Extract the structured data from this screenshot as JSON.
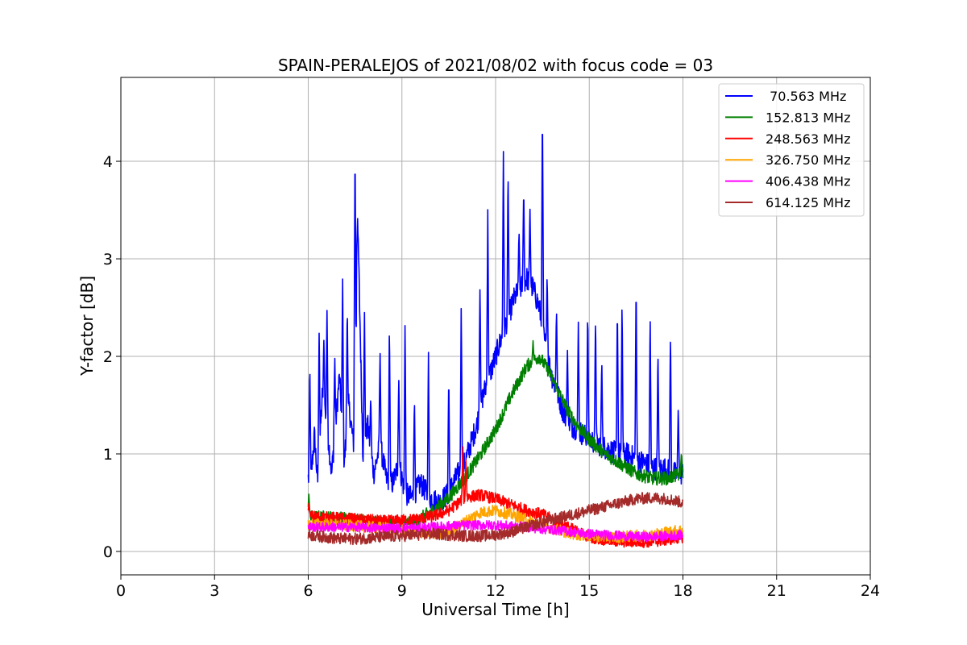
{
  "chart_data": {
    "type": "line",
    "title": "SPAIN-PERALEJOS of 2021/08/02 with focus code = 03",
    "xlabel": "Universal Time [h]",
    "ylabel": "Y-factor [dB]",
    "xlim": [
      0,
      24
    ],
    "ylim": [
      -0.24,
      4.86
    ],
    "xticks": [
      0,
      3,
      6,
      9,
      12,
      15,
      18,
      21,
      24
    ],
    "yticks": [
      0,
      1,
      2,
      3,
      4
    ],
    "grid": true,
    "legend_position": "upper right",
    "legend_labels": [
      " 70.563 MHz",
      "152.813 MHz",
      "248.563 MHz",
      "326.750 MHz",
      "406.438 MHz",
      "614.125 MHz"
    ],
    "series": [
      {
        "name": " 70.563 MHz",
        "color": "#0000ff",
        "noise": 0.12,
        "x": [
          6.0,
          6.1,
          6.2,
          6.3,
          6.45,
          6.6,
          6.75,
          6.9,
          7.0,
          7.15,
          7.3,
          7.45,
          7.6,
          7.75,
          7.9,
          8.1,
          8.3,
          8.5,
          8.7,
          8.9,
          9.1,
          9.3,
          9.6,
          9.9,
          10.2,
          10.5,
          10.8,
          11.0,
          11.2,
          11.4,
          11.6,
          11.8,
          12.0,
          12.2,
          12.4,
          12.6,
          12.8,
          13.0,
          13.2,
          13.4,
          13.6,
          13.8,
          14.0,
          14.2,
          14.4,
          14.6,
          14.8,
          15.0,
          15.3,
          15.6,
          15.9,
          16.2,
          16.5,
          16.8,
          17.1,
          17.4,
          17.7,
          18.0
        ],
        "y": [
          0.75,
          0.8,
          1.2,
          0.7,
          1.6,
          1.3,
          0.8,
          1.4,
          1.8,
          0.9,
          1.5,
          1.1,
          3.2,
          1.0,
          1.3,
          0.8,
          1.1,
          0.75,
          0.7,
          0.9,
          0.6,
          0.55,
          0.7,
          0.55,
          0.5,
          0.6,
          0.8,
          0.9,
          1.1,
          1.3,
          1.6,
          1.8,
          2.0,
          2.2,
          2.4,
          2.6,
          2.7,
          2.8,
          2.7,
          2.5,
          2.1,
          1.8,
          1.6,
          1.4,
          1.3,
          1.25,
          1.2,
          1.15,
          1.1,
          1.05,
          1.0,
          1.0,
          0.95,
          0.9,
          0.85,
          0.85,
          0.8,
          0.8
        ],
        "spikes": [
          [
            6.05,
            1.97
          ],
          [
            6.35,
            2.27
          ],
          [
            6.5,
            2.2
          ],
          [
            6.6,
            2.47
          ],
          [
            6.85,
            2.0
          ],
          [
            7.1,
            2.88
          ],
          [
            7.25,
            2.55
          ],
          [
            7.5,
            4.25
          ],
          [
            7.58,
            3.44
          ],
          [
            7.8,
            2.45
          ],
          [
            8.0,
            1.6
          ],
          [
            8.3,
            2.08
          ],
          [
            8.6,
            2.38
          ],
          [
            8.9,
            1.8
          ],
          [
            9.1,
            2.41
          ],
          [
            9.4,
            1.6
          ],
          [
            9.85,
            2.08
          ],
          [
            10.5,
            1.85
          ],
          [
            10.9,
            2.58
          ],
          [
            11.5,
            2.75
          ],
          [
            11.75,
            3.55
          ],
          [
            12.25,
            4.15
          ],
          [
            12.4,
            3.95
          ],
          [
            12.75,
            3.3
          ],
          [
            12.9,
            3.76
          ],
          [
            13.1,
            3.55
          ],
          [
            13.5,
            4.64
          ],
          [
            13.65,
            2.85
          ],
          [
            13.95,
            2.5
          ],
          [
            14.3,
            2.1
          ],
          [
            14.65,
            2.38
          ],
          [
            14.95,
            2.52
          ],
          [
            15.2,
            2.45
          ],
          [
            15.4,
            2.0
          ],
          [
            15.9,
            2.58
          ],
          [
            16.05,
            2.6
          ],
          [
            16.5,
            2.85
          ],
          [
            16.95,
            2.48
          ],
          [
            17.2,
            2.1
          ],
          [
            17.6,
            2.3
          ],
          [
            17.85,
            1.5
          ]
        ]
      },
      {
        "name": "152.813 MHz",
        "color": "#008000",
        "noise": 0.07,
        "x": [
          6.0,
          6.5,
          7.0,
          7.5,
          8.0,
          8.5,
          9.0,
          9.5,
          10.0,
          10.5,
          11.0,
          11.5,
          12.0,
          12.5,
          13.0,
          13.4,
          13.7,
          14.0,
          14.3,
          14.6,
          15.0,
          15.5,
          16.0,
          16.5,
          17.0,
          17.5,
          18.0
        ],
        "y": [
          0.35,
          0.35,
          0.34,
          0.33,
          0.3,
          0.28,
          0.28,
          0.32,
          0.42,
          0.55,
          0.75,
          0.98,
          1.25,
          1.6,
          1.9,
          2.0,
          1.85,
          1.65,
          1.45,
          1.3,
          1.15,
          1.0,
          0.9,
          0.8,
          0.75,
          0.75,
          0.8
        ],
        "spikes": [
          [
            6.02,
            0.6
          ],
          [
            13.2,
            2.16
          ],
          [
            17.95,
            1.02
          ]
        ]
      },
      {
        "name": "248.563 MHz",
        "color": "#ff0000",
        "noise": 0.06,
        "x": [
          6.0,
          6.5,
          7.0,
          7.5,
          8.0,
          8.5,
          9.0,
          9.5,
          10.0,
          10.5,
          11.0,
          11.5,
          12.0,
          12.5,
          13.0,
          13.5,
          14.0,
          14.5,
          15.0,
          15.5,
          16.0,
          16.5,
          17.0,
          17.5,
          18.0
        ],
        "y": [
          0.36,
          0.35,
          0.34,
          0.33,
          0.32,
          0.31,
          0.32,
          0.33,
          0.36,
          0.42,
          0.55,
          0.58,
          0.54,
          0.48,
          0.42,
          0.38,
          0.3,
          0.22,
          0.15,
          0.12,
          0.1,
          0.1,
          0.1,
          0.12,
          0.15
        ],
        "spikes": [
          [
            10.95,
            1.12
          ],
          [
            11.05,
            0.95
          ],
          [
            6.02,
            0.5
          ]
        ]
      },
      {
        "name": "326.750 MHz",
        "color": "#ffa500",
        "noise": 0.06,
        "x": [
          6.0,
          6.5,
          7.0,
          7.5,
          8.0,
          8.5,
          9.0,
          9.5,
          10.0,
          10.5,
          11.0,
          11.5,
          12.0,
          12.5,
          13.0,
          13.5,
          14.0,
          14.5,
          15.0,
          15.5,
          16.0,
          16.5,
          17.0,
          17.5,
          18.0
        ],
        "y": [
          0.28,
          0.28,
          0.27,
          0.26,
          0.25,
          0.24,
          0.22,
          0.2,
          0.18,
          0.2,
          0.3,
          0.4,
          0.42,
          0.38,
          0.32,
          0.27,
          0.22,
          0.18,
          0.16,
          0.15,
          0.15,
          0.16,
          0.17,
          0.2,
          0.22
        ],
        "spikes": []
      },
      {
        "name": "406.438 MHz",
        "color": "#ff00ff",
        "noise": 0.05,
        "x": [
          6.0,
          6.5,
          7.0,
          7.5,
          8.0,
          8.5,
          9.0,
          9.5,
          10.0,
          10.5,
          11.0,
          11.5,
          12.0,
          12.5,
          13.0,
          13.5,
          14.0,
          14.5,
          15.0,
          15.5,
          16.0,
          16.5,
          17.0,
          17.5,
          18.0
        ],
        "y": [
          0.25,
          0.25,
          0.25,
          0.25,
          0.24,
          0.24,
          0.24,
          0.24,
          0.25,
          0.26,
          0.27,
          0.27,
          0.27,
          0.26,
          0.25,
          0.23,
          0.22,
          0.2,
          0.18,
          0.17,
          0.16,
          0.15,
          0.15,
          0.16,
          0.17
        ],
        "spikes": []
      },
      {
        "name": "614.125 MHz",
        "color": "#a52a2a",
        "noise": 0.06,
        "x": [
          6.0,
          6.5,
          7.0,
          7.5,
          8.0,
          8.5,
          9.0,
          9.5,
          10.0,
          10.5,
          11.0,
          11.5,
          12.0,
          12.5,
          13.0,
          13.5,
          14.0,
          14.5,
          15.0,
          15.5,
          16.0,
          16.5,
          17.0,
          17.5,
          18.0
        ],
        "y": [
          0.17,
          0.15,
          0.13,
          0.13,
          0.14,
          0.15,
          0.16,
          0.17,
          0.18,
          0.17,
          0.16,
          0.16,
          0.17,
          0.2,
          0.25,
          0.3,
          0.34,
          0.38,
          0.42,
          0.46,
          0.5,
          0.54,
          0.55,
          0.54,
          0.5
        ],
        "spikes": []
      }
    ]
  }
}
